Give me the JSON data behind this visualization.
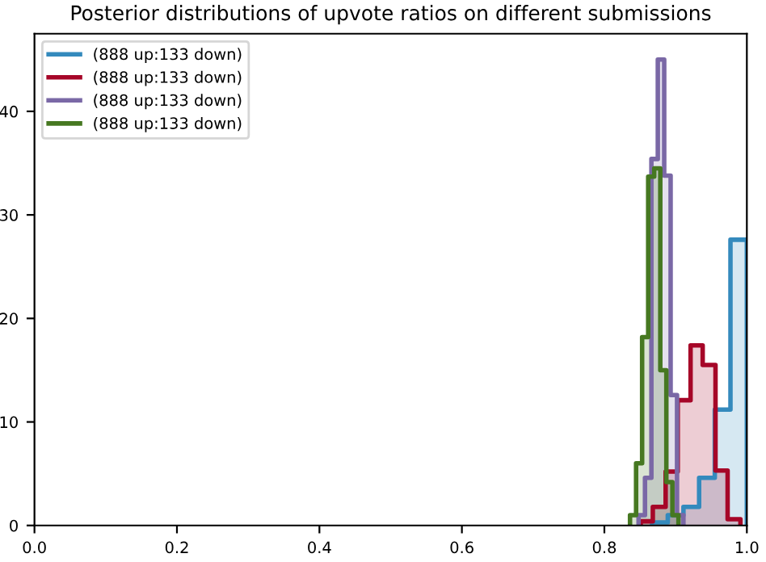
{
  "chart_data": {
    "type": "step",
    "title": "Posterior distributions of upvote ratios on different submissions",
    "series": [
      {
        "name": "(888 up:133 down)",
        "color": "#348abd",
        "x": [
          0.867,
          0.867,
          0.889,
          0.911,
          0.933,
          0.955,
          0.977,
          1.0
        ],
        "values": [
          0,
          0.3,
          1.0,
          1.8,
          4.6,
          11.2,
          27.6,
          0
        ]
      },
      {
        "name": "(888 up:133 down)",
        "color": "#a60628",
        "x": [
          0.851,
          0.851,
          0.868,
          0.886,
          0.903,
          0.921,
          0.938,
          0.956,
          0.973,
          0.991
        ],
        "values": [
          0,
          0.4,
          1.8,
          5.2,
          12.1,
          17.4,
          15.5,
          5.3,
          0.6,
          0
        ]
      },
      {
        "name": "(888 up:133 down)",
        "color": "#7a68a6",
        "x": [
          0.848,
          0.848,
          0.857,
          0.866,
          0.875,
          0.884,
          0.893,
          0.902,
          0.911
        ],
        "values": [
          0,
          1.0,
          4.6,
          35.4,
          45.0,
          33.8,
          12.6,
          1.0,
          0
        ]
      },
      {
        "name": "(888 up:133 down)",
        "color": "#467821",
        "x": [
          0.836,
          0.836,
          0.8445,
          0.853,
          0.8615,
          0.87,
          0.8785,
          0.887,
          0.8955,
          0.904
        ],
        "values": [
          0,
          1.0,
          6.0,
          18.2,
          33.7,
          34.5,
          15.0,
          4.2,
          1.0,
          0
        ]
      }
    ],
    "xlim": [
      0,
      1
    ],
    "xticks": [
      {
        "value": 0,
        "label": "0.0"
      },
      {
        "value": 0.2,
        "label": "0.2"
      },
      {
        "value": 0.4,
        "label": "0.4"
      },
      {
        "value": 0.6,
        "label": "0.6"
      },
      {
        "value": 0.8,
        "label": "0.8"
      },
      {
        "value": 1,
        "label": "1.0"
      }
    ],
    "ylim": [
      0,
      47.5
    ],
    "yticks": [
      0,
      10,
      20,
      30,
      40
    ],
    "legend": "top left",
    "grid": false
  }
}
